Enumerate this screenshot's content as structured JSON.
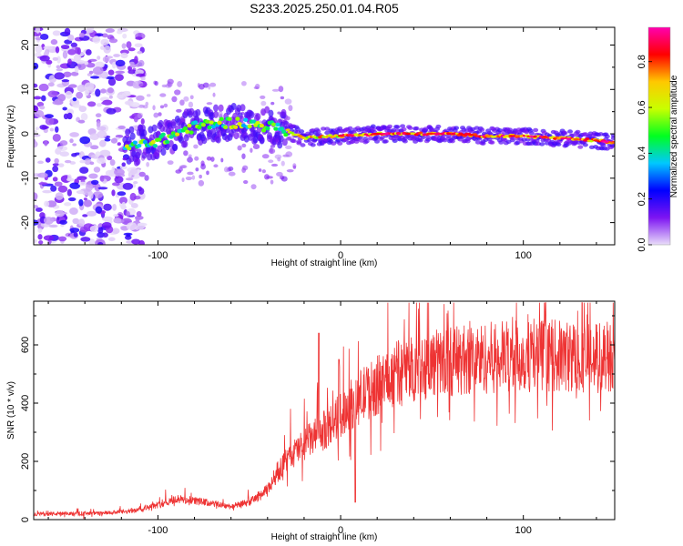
{
  "chart_data": [
    {
      "type": "heatmap",
      "title": "S233.2025.250.01.04.R05",
      "xlabel": "Height of straight line (km)",
      "ylabel": "Frequency (Hz)",
      "xlim": [
        -168,
        150
      ],
      "ylim": [
        -25,
        24
      ],
      "xticks": [
        -100,
        0,
        100
      ],
      "yticks": [
        -20,
        -10,
        0,
        10,
        20
      ],
      "colorbar": {
        "label": "Normalized spectral amplitude",
        "ticks": [
          0.0,
          0.2,
          0.4,
          0.6,
          0.8
        ],
        "range": [
          0,
          0.95
        ],
        "colors": [
          "#e9ddf9",
          "#7d14f2",
          "#0000ff",
          "#00c8ff",
          "#00ff20",
          "#c8ff00",
          "#ffc800",
          "#ff0000",
          "#ff00b0"
        ]
      },
      "ridge_frequency": {
        "x": [
          -115,
          -105,
          -95,
          -85,
          -75,
          -65,
          -55,
          -45,
          -35,
          -28,
          -20,
          -10,
          0,
          20,
          40,
          60,
          80,
          100,
          120,
          140,
          150
        ],
        "y": [
          -3,
          -2,
          -1,
          1,
          2,
          2.5,
          2.5,
          2,
          1.5,
          0.5,
          -1,
          -0.5,
          -0.5,
          0,
          0,
          0,
          -0.5,
          -0.5,
          -1,
          -1.5,
          -2
        ]
      },
      "noise_region_x": [
        -168,
        -108
      ]
    },
    {
      "type": "line",
      "xlabel": "Height of straight line (km)",
      "ylabel": "SNR (10 * v/v)",
      "xlim": [
        -168,
        150
      ],
      "ylim": [
        0,
        750
      ],
      "xticks": [
        -100,
        0,
        100
      ],
      "yticks": [
        0,
        200,
        400,
        600
      ],
      "color": "#ee3333",
      "series": [
        {
          "x": [
            -168,
            -150,
            -130,
            -115,
            -100,
            -90,
            -80,
            -70,
            -60,
            -50,
            -40,
            -35,
            -30,
            -25,
            -20,
            -15,
            -10,
            -5,
            0,
            5,
            10,
            15,
            20,
            25,
            30,
            40,
            50,
            60,
            70,
            80,
            90,
            100,
            110,
            120,
            130,
            140,
            150
          ],
          "y": [
            20,
            20,
            22,
            28,
            50,
            70,
            65,
            55,
            45,
            60,
            100,
            160,
            200,
            230,
            260,
            280,
            300,
            330,
            360,
            390,
            420,
            440,
            460,
            480,
            500,
            520,
            535,
            545,
            550,
            555,
            560,
            560,
            565,
            560,
            560,
            555,
            570
          ]
        }
      ]
    }
  ]
}
